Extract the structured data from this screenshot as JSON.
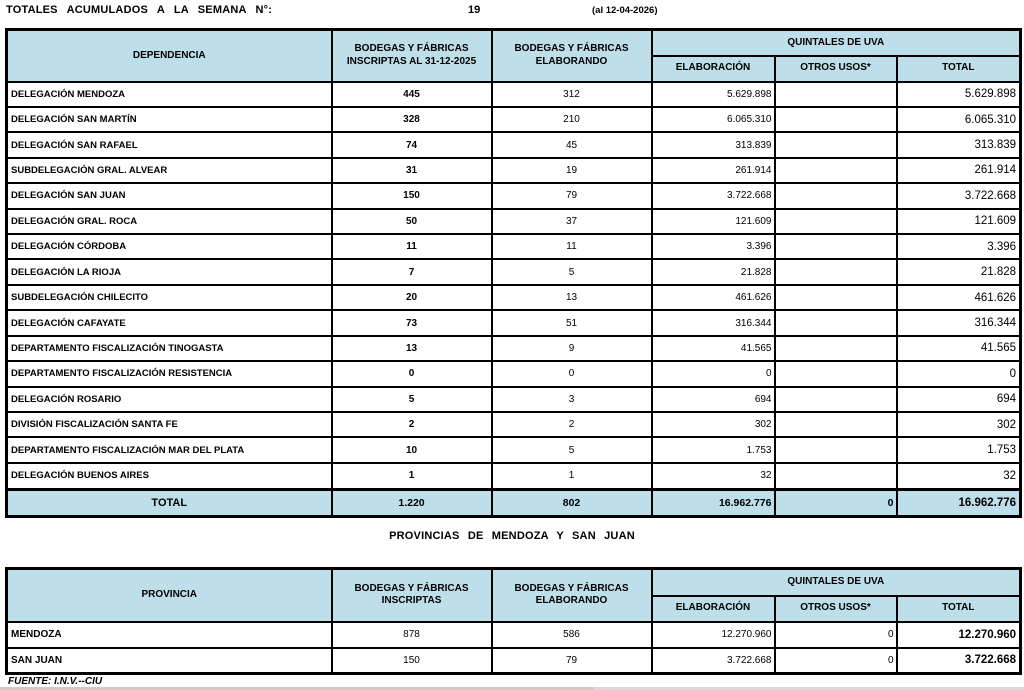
{
  "page": {
    "title": "TOTALES  ACUMULADOS  A  LA  SEMANA  N°:",
    "week_number": "19",
    "date_note": "(al 12-04-2026)",
    "section2_heading": "PROVINCIAS  DE  MENDOZA  Y  SAN  JUAN",
    "source_note": "FUENTE: I.N.V.--CIU"
  },
  "colors": {
    "header_bg": "#bedfe9",
    "border": "#000000"
  },
  "table1": {
    "headers": {
      "col1": "DEPENDENCIA",
      "col2_line1": "BODEGAS Y FÁBRICAS",
      "col2_line2": "INSCRIPTAS AL 31-12-2025",
      "col3_line1": "BODEGAS Y FÁBRICAS",
      "col3_line2": "ELABORANDO",
      "group": "QUINTALES DE UVA",
      "sub1": "ELABORACIÓN",
      "sub2": "OTROS USOS*",
      "sub3": "TOTAL"
    },
    "rows": [
      {
        "name": "DELEGACIÓN MENDOZA",
        "inscriptas": "445",
        "elaborando": "312",
        "elaboracion": "5.629.898",
        "otros_usos": "",
        "total": "5.629.898"
      },
      {
        "name": "DELEGACIÓN SAN MARTÍN",
        "inscriptas": "328",
        "elaborando": "210",
        "elaboracion": "6.065.310",
        "otros_usos": "",
        "total": "6.065.310"
      },
      {
        "name": "DELEGACIÓN SAN RAFAEL",
        "inscriptas": "74",
        "elaborando": "45",
        "elaboracion": "313.839",
        "otros_usos": "",
        "total": "313.839"
      },
      {
        "name": "SUBDELEGACIÓN GRAL. ALVEAR",
        "inscriptas": "31",
        "elaborando": "19",
        "elaboracion": "261.914",
        "otros_usos": "",
        "total": "261.914"
      },
      {
        "name": "DELEGACIÓN SAN JUAN",
        "inscriptas": "150",
        "elaborando": "79",
        "elaboracion": "3.722.668",
        "otros_usos": "",
        "total": "3.722.668"
      },
      {
        "name": "DELEGACIÓN GRAL. ROCA",
        "inscriptas": "50",
        "elaborando": "37",
        "elaboracion": "121.609",
        "otros_usos": "",
        "total": "121.609"
      },
      {
        "name": "DELEGACIÓN CÓRDOBA",
        "inscriptas": "11",
        "elaborando": "11",
        "elaboracion": "3.396",
        "otros_usos": "",
        "total": "3.396"
      },
      {
        "name": "DELEGACIÓN LA RIOJA",
        "inscriptas": "7",
        "elaborando": "5",
        "elaboracion": "21.828",
        "otros_usos": "",
        "total": "21.828"
      },
      {
        "name": "SUBDELEGACIÓN CHILECITO",
        "inscriptas": "20",
        "elaborando": "13",
        "elaboracion": "461.626",
        "otros_usos": "",
        "total": "461.626"
      },
      {
        "name": "DELEGACIÓN CAFAYATE",
        "inscriptas": "73",
        "elaborando": "51",
        "elaboracion": "316.344",
        "otros_usos": "",
        "total": "316.344"
      },
      {
        "name": "DEPARTAMENTO FISCALIZACIÓN TINOGASTA",
        "inscriptas": "13",
        "elaborando": "9",
        "elaboracion": "41.565",
        "otros_usos": "",
        "total": "41.565"
      },
      {
        "name": "DEPARTAMENTO FISCALIZACIÓN RESISTENCIA",
        "inscriptas": "0",
        "elaborando": "0",
        "elaboracion": "0",
        "otros_usos": "",
        "total": "0"
      },
      {
        "name": "DELEGACIÓN ROSARIO",
        "inscriptas": "5",
        "elaborando": "3",
        "elaboracion": "694",
        "otros_usos": "",
        "total": "694"
      },
      {
        "name": "DIVISIÓN FISCALIZACIÓN SANTA FE",
        "inscriptas": "2",
        "elaborando": "2",
        "elaboracion": "302",
        "otros_usos": "",
        "total": "302"
      },
      {
        "name": "DEPARTAMENTO FISCALIZACIÓN MAR DEL PLATA",
        "inscriptas": "10",
        "elaborando": "5",
        "elaboracion": "1.753",
        "otros_usos": "",
        "total": "1.753"
      },
      {
        "name": "DELEGACIÓN BUENOS AIRES",
        "inscriptas": "1",
        "elaborando": "1",
        "elaboracion": "32",
        "otros_usos": "",
        "total": "32"
      }
    ],
    "total_row": {
      "label": "TOTAL",
      "inscriptas": "1.220",
      "elaborando": "802",
      "elaboracion": "16.962.776",
      "otros_usos": "0",
      "total": "16.962.776"
    }
  },
  "table2": {
    "headers": {
      "col1": "PROVINCIA",
      "col2_line1": "BODEGAS Y FÁBRICAS",
      "col2_line2": "INSCRIPTAS",
      "col3_line1": "BODEGAS Y FÁBRICAS",
      "col3_line2": "ELABORANDO",
      "group": "QUINTALES DE UVA",
      "sub1": "ELABORACIÓN",
      "sub2": "OTROS USOS*",
      "sub3": "TOTAL"
    },
    "rows": [
      {
        "name": "MENDOZA",
        "inscriptas": "878",
        "elaborando": "586",
        "elaboracion": "12.270.960",
        "otros_usos": "0",
        "total": "12.270.960"
      },
      {
        "name": "SAN  JUAN",
        "inscriptas": "150",
        "elaborando": "79",
        "elaboracion": "3.722.668",
        "otros_usos": "0",
        "total": "3.722.668"
      }
    ]
  }
}
